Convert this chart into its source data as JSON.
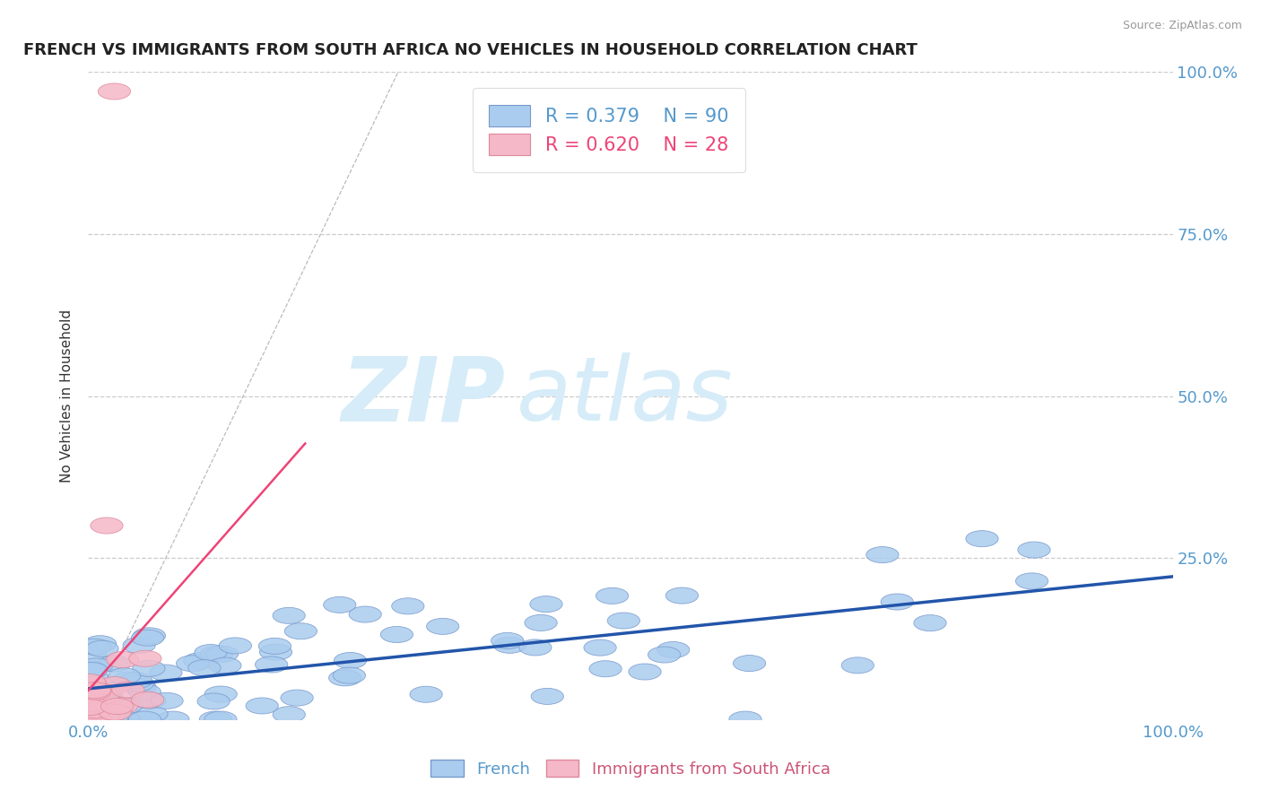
{
  "title": "FRENCH VS IMMIGRANTS FROM SOUTH AFRICA NO VEHICLES IN HOUSEHOLD CORRELATION CHART",
  "source": "Source: ZipAtlas.com",
  "ylabel": "No Vehicles in Household",
  "xlim": [
    0,
    1
  ],
  "ylim": [
    0,
    1
  ],
  "xtick_labels": [
    "0.0%",
    "100.0%"
  ],
  "ytick_labels": [
    "25.0%",
    "50.0%",
    "75.0%",
    "100.0%"
  ],
  "ytick_positions": [
    0.25,
    0.5,
    0.75,
    1.0
  ],
  "grid_color": "#cccccc",
  "background_color": "#ffffff",
  "watermark_zip": "ZIP",
  "watermark_atlas": "atlas",
  "watermark_color": "#d6ecf8",
  "french_color": "#aaccee",
  "french_edge_color": "#7799cc",
  "french_R": 0.379,
  "french_N": 90,
  "french_line_color": "#2255aa",
  "sa_color": "#f5b8c8",
  "sa_edge_color": "#dd8899",
  "sa_R": 0.62,
  "sa_N": 28,
  "sa_line_color": "#ee4477",
  "gray_dash_color": "#bbbbbb",
  "title_fontsize": 13,
  "legend_fontsize": 15,
  "axis_label_fontsize": 11,
  "tick_fontsize": 13,
  "tick_color": "#5599cc"
}
